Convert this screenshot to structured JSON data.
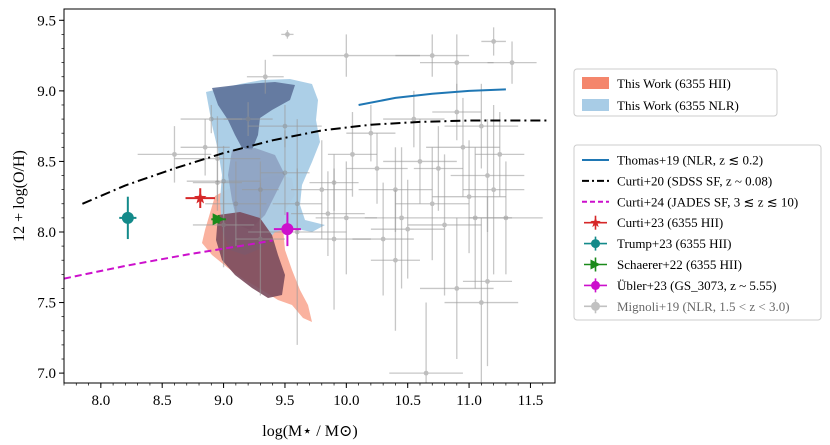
{
  "chart_data": {
    "type": "scatter",
    "title": "",
    "xlabel": "log(M⋆ / M⊙)",
    "ylabel": "12 + log(O/H)",
    "xlim": [
      7.7,
      11.7
    ],
    "ylim": [
      6.93,
      9.58
    ],
    "x_ticks": [
      "8.0",
      "8.5",
      "9.0",
      "9.5",
      "10.0",
      "10.5",
      "11.0",
      "11.5"
    ],
    "y_ticks": [
      "7.0",
      "7.5",
      "8.0",
      "8.5",
      "9.0",
      "9.5"
    ],
    "legend_top": [
      {
        "label": "This Work (6355 HII)",
        "color": "#f4866c"
      },
      {
        "label": "This Work (6355 NLR)",
        "color": "#a8cce6"
      }
    ],
    "legend_bottom": [
      {
        "label": "Thomas+19 (NLR, z ≲ 0.2)",
        "color": "#1f77b4",
        "style": "solid"
      },
      {
        "label": "Curti+20 (SDSS SF, z ~ 0.08)",
        "color": "#000000",
        "style": "dashdot"
      },
      {
        "label": "Curti+24 (JADES SF, 3 ≲ z ≲ 10)",
        "color": "#cc10cc",
        "style": "dashed"
      },
      {
        "label": "Curti+23 (6355 HII)",
        "color": "#d62728",
        "marker": "star"
      },
      {
        "label": "Trump+23 (6355 HII)",
        "color": "#138a8a",
        "marker": "circle"
      },
      {
        "label": "Schaerer+22 (6355 HII)",
        "color": "#1a8a1a",
        "marker": "triangle-right"
      },
      {
        "label": "Übler+23 (GS_3073, z ~ 5.55)",
        "color": "#cc10cc",
        "marker": "circle"
      },
      {
        "label": "Mignoli+19 (NLR, 1.5 < z < 3.0)",
        "color": "#999999",
        "marker": "circle"
      }
    ],
    "series": [
      {
        "name": "Thomas+19 (NLR, z ≲ 0.2)",
        "color": "#1f77b4",
        "x": [
          10.1,
          10.4,
          10.7,
          11.0,
          11.3
        ],
        "y": [
          8.9,
          8.95,
          8.98,
          9.0,
          9.01
        ]
      },
      {
        "name": "Curti+20 (SDSS SF, z ~ 0.08)",
        "color": "#000000",
        "x": [
          7.85,
          8.2,
          8.6,
          9.0,
          9.4,
          9.8,
          10.2,
          10.6,
          11.0,
          11.4,
          11.65
        ],
        "y": [
          8.2,
          8.33,
          8.45,
          8.56,
          8.65,
          8.72,
          8.76,
          8.78,
          8.79,
          8.79,
          8.79
        ]
      },
      {
        "name": "Curti+24 (JADES SF, 3 ≲ z ≲ 10)",
        "color": "#cc10cc",
        "x": [
          7.7,
          8.2,
          8.7,
          9.2,
          9.4
        ],
        "y": [
          7.67,
          7.76,
          7.84,
          7.91,
          7.94
        ]
      }
    ],
    "points": [
      {
        "name": "Curti+23 (6355 HII)",
        "x": 8.81,
        "y": 8.24,
        "xerr": 0.12,
        "yerr": 0.07,
        "color": "#d62728",
        "marker": "star"
      },
      {
        "name": "Trump+23 (6355 HII)",
        "x": 8.22,
        "y": 8.1,
        "xerr": 0.07,
        "yerr": 0.15,
        "color": "#138a8a",
        "marker": "circle"
      },
      {
        "name": "Schaerer+22 (6355 HII)",
        "x": 8.96,
        "y": 8.09,
        "xerr": 0.06,
        "yerr": 0.03,
        "color": "#1a8a1a",
        "marker": "triangle-right"
      },
      {
        "name": "Übler+23 (GS_3073, z ~ 5.55)",
        "x": 9.52,
        "y": 8.02,
        "xerr": 0.11,
        "yerr": 0.12,
        "color": "#cc10cc",
        "marker": "circle"
      }
    ],
    "mignoli": [
      [
        9.52,
        9.4,
        0.05,
        0.03
      ],
      [
        9.34,
        9.1,
        0.15,
        0.12
      ],
      [
        9.5,
        8.75,
        0.3,
        0.15
      ],
      [
        9.2,
        8.8,
        0.2,
        0.12
      ],
      [
        8.9,
        8.8,
        0.25,
        0.1
      ],
      [
        8.85,
        8.6,
        0.2,
        0.2
      ],
      [
        8.95,
        8.52,
        0.35,
        0.3
      ],
      [
        9.0,
        8.36,
        0.3,
        0.25
      ],
      [
        8.95,
        8.35,
        0.2,
        0.2
      ],
      [
        9.1,
        8.2,
        0.25,
        0.3
      ],
      [
        9.3,
        8.3,
        0.15,
        0.2
      ],
      [
        9.5,
        8.42,
        0.2,
        0.3
      ],
      [
        9.6,
        8.2,
        0.2,
        0.25
      ],
      [
        9.8,
        8.3,
        0.25,
        0.35
      ],
      [
        9.9,
        8.35,
        0.2,
        0.2
      ],
      [
        9.85,
        8.13,
        0.3,
        0.3
      ],
      [
        9.6,
        8.0,
        0.4,
        0.8
      ],
      [
        9.9,
        7.95,
        0.3,
        0.5
      ],
      [
        10.0,
        8.1,
        0.25,
        0.4
      ],
      [
        10.05,
        8.55,
        0.2,
        0.3
      ],
      [
        10.2,
        8.7,
        0.2,
        0.2
      ],
      [
        10.25,
        8.45,
        0.25,
        0.25
      ],
      [
        10.4,
        8.3,
        0.3,
        0.3
      ],
      [
        10.45,
        8.1,
        0.3,
        0.5
      ],
      [
        10.5,
        8.02,
        0.3,
        0.35
      ],
      [
        10.55,
        8.8,
        0.25,
        0.2
      ],
      [
        10.6,
        8.5,
        0.3,
        0.3
      ],
      [
        10.7,
        8.2,
        0.3,
        0.4
      ],
      [
        10.8,
        8.05,
        0.3,
        0.5
      ],
      [
        10.9,
        8.85,
        0.2,
        0.2
      ],
      [
        10.95,
        8.6,
        0.3,
        0.35
      ],
      [
        11.0,
        8.25,
        0.3,
        0.4
      ],
      [
        11.05,
        8.1,
        0.3,
        0.5
      ],
      [
        11.1,
        8.75,
        0.3,
        0.3
      ],
      [
        11.15,
        8.4,
        0.3,
        0.4
      ],
      [
        11.2,
        8.3,
        0.25,
        0.6
      ],
      [
        11.25,
        8.55,
        0.2,
        0.3
      ],
      [
        11.3,
        8.1,
        0.3,
        0.4
      ],
      [
        11.35,
        9.2,
        0.2,
        0.15
      ],
      [
        10.0,
        9.25,
        0.6,
        0.15
      ],
      [
        10.7,
        9.25,
        0.3,
        0.15
      ],
      [
        10.9,
        9.2,
        0.3,
        0.2
      ],
      [
        11.2,
        9.35,
        0.1,
        0.1
      ],
      [
        10.4,
        7.8,
        0.2,
        0.5
      ],
      [
        10.9,
        7.6,
        0.3,
        0.5
      ],
      [
        11.1,
        7.5,
        0.3,
        0.6
      ],
      [
        10.65,
        7.0,
        0.3,
        0.5
      ],
      [
        11.15,
        7.65,
        0.2,
        0.6
      ],
      [
        9.0,
        8.05,
        0.25,
        0.3
      ],
      [
        9.3,
        7.95,
        0.2,
        0.4
      ],
      [
        8.6,
        8.55,
        0.3,
        0.2
      ],
      [
        10.3,
        7.95,
        0.25,
        0.4
      ],
      [
        10.75,
        8.45,
        0.2,
        0.3
      ]
    ]
  }
}
